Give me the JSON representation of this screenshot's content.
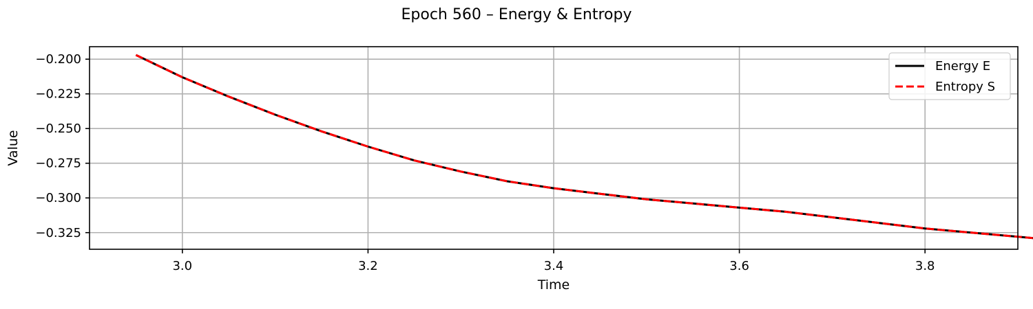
{
  "chart_data": {
    "type": "line",
    "title": "Epoch 560 – Energy & Entropy",
    "xlabel": "Time",
    "ylabel": "Value",
    "xlim": [
      2.9,
      3.9
    ],
    "ylim": [
      -0.337,
      -0.191
    ],
    "xticks": [
      3.0,
      3.2,
      3.4,
      3.6,
      3.8
    ],
    "xtick_labels": [
      "3.0",
      "3.2",
      "3.4",
      "3.6",
      "3.8"
    ],
    "yticks": [
      -0.2,
      -0.225,
      -0.25,
      -0.275,
      -0.3,
      -0.325
    ],
    "ytick_labels": [
      "−0.200",
      "−0.225",
      "−0.250",
      "−0.275",
      "−0.300",
      "−0.325"
    ],
    "grid": true,
    "legend_position": "top-right",
    "series": [
      {
        "name": "Energy E",
        "color": "#000000",
        "style": "solid",
        "x": [
          2.95,
          3.0,
          3.05,
          3.1,
          3.15,
          3.2,
          3.25,
          3.3,
          3.35,
          3.4,
          3.45,
          3.5,
          3.55,
          3.6,
          3.65,
          3.7,
          3.75,
          3.8,
          3.85,
          3.9,
          3.935
        ],
        "y": [
          -0.197,
          -0.213,
          -0.227,
          -0.24,
          -0.252,
          -0.263,
          -0.273,
          -0.281,
          -0.288,
          -0.293,
          -0.297,
          -0.301,
          -0.304,
          -0.307,
          -0.31,
          -0.314,
          -0.318,
          -0.322,
          -0.325,
          -0.328,
          -0.33
        ]
      },
      {
        "name": "Entropy S",
        "color": "#ff0000",
        "style": "dashed",
        "x": [
          2.95,
          3.0,
          3.05,
          3.1,
          3.15,
          3.2,
          3.25,
          3.3,
          3.35,
          3.4,
          3.45,
          3.5,
          3.55,
          3.6,
          3.65,
          3.7,
          3.75,
          3.8,
          3.85,
          3.9,
          3.935
        ],
        "y": [
          -0.197,
          -0.213,
          -0.227,
          -0.24,
          -0.252,
          -0.263,
          -0.273,
          -0.281,
          -0.288,
          -0.293,
          -0.297,
          -0.301,
          -0.304,
          -0.307,
          -0.31,
          -0.314,
          -0.318,
          -0.322,
          -0.325,
          -0.328,
          -0.33
        ]
      }
    ]
  }
}
